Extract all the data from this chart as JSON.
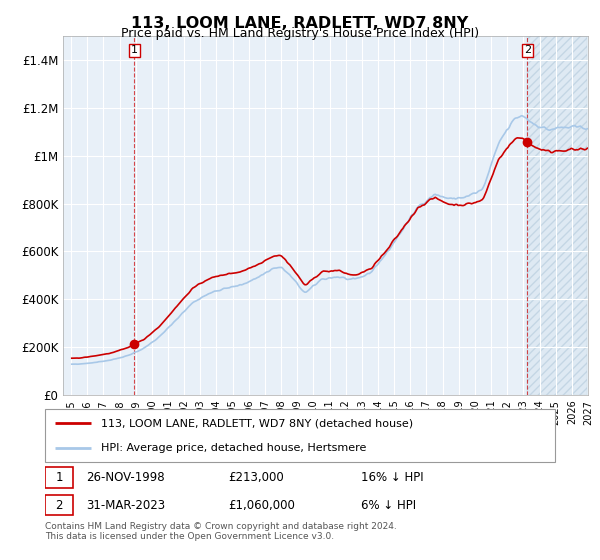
{
  "title": "113, LOOM LANE, RADLETT, WD7 8NY",
  "subtitle": "Price paid vs. HM Land Registry's House Price Index (HPI)",
  "sale1_t": 1998.9167,
  "sale1_price": 213000,
  "sale2_t": 2023.25,
  "sale2_price": 1060000,
  "hpi_color": "#a8c8e8",
  "price_color": "#cc0000",
  "bg_plot": "#e8f0f8",
  "bg_fig": "#ffffff",
  "grid_color": "#ffffff",
  "ylim": [
    0,
    1500000
  ],
  "yticks": [
    0,
    200000,
    400000,
    600000,
    800000,
    1000000,
    1200000,
    1400000
  ],
  "ytick_labels": [
    "£0",
    "£200K",
    "£400K",
    "£600K",
    "£800K",
    "£1M",
    "£1.2M",
    "£1.4M"
  ],
  "xstart": 1995,
  "xend": 2027,
  "legend_label1": "113, LOOM LANE, RADLETT, WD7 8NY (detached house)",
  "legend_label2": "HPI: Average price, detached house, Hertsmere",
  "note1_label": "1",
  "note1_date": "26-NOV-1998",
  "note1_price": "£213,000",
  "note1_hpi": "16% ↓ HPI",
  "note2_label": "2",
  "note2_date": "31-MAR-2023",
  "note2_price": "£1,060,000",
  "note2_hpi": "6% ↓ HPI",
  "footer": "Contains HM Land Registry data © Crown copyright and database right 2024.\nThis data is licensed under the Open Government Licence v3.0."
}
